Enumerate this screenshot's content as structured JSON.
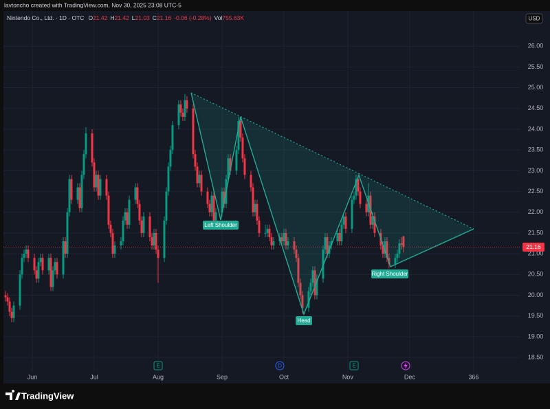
{
  "header": {
    "credit": "lavtoncho created with TradingView.com, Nov 30, 2025 23:08 UTC-5",
    "symbol": "Nintendo Co., Ltd. · 1D · OTC",
    "ohlc": [
      {
        "label": "O",
        "value": "21.42"
      },
      {
        "label": "H",
        "value": "21.42"
      },
      {
        "label": "L",
        "value": "21.03"
      },
      {
        "label": "C",
        "value": "21.16"
      }
    ],
    "change": "-0.06 (-0.28%)",
    "volume_label": "Vol",
    "volume": "755.63K"
  },
  "currency": "USD",
  "brand": "TradingView",
  "events": [
    "E",
    "D",
    "E"
  ],
  "chart_data": {
    "type": "candlestick",
    "annotations": [
      "Left Shoulder",
      "Head",
      "Right Shoulder"
    ],
    "up_color": "#089981",
    "down_color": "#f23645",
    "grid": true,
    "last_price": {
      "value": 21.16,
      "label": "21.16"
    },
    "xlim": [
      138,
      388.7
    ],
    "xticks": [
      {
        "value": 152,
        "label": "Jun"
      },
      {
        "value": 182,
        "label": "Jul"
      },
      {
        "value": 213,
        "label": "Aug"
      },
      {
        "value": 244,
        "label": "Sep"
      },
      {
        "value": 274,
        "label": "Oct"
      },
      {
        "value": 305,
        "label": "Nov"
      },
      {
        "value": 335,
        "label": "Dec"
      },
      366
    ],
    "ylim": [
      18.17,
      26.75
    ],
    "yticks": [
      {
        "value": 18.5,
        "label": "18.50"
      },
      {
        "value": 19,
        "label": "19.00"
      },
      {
        "value": 19.5,
        "label": "19.50"
      },
      {
        "value": 20,
        "label": "20.00"
      },
      {
        "value": 20.5,
        "label": "20.50"
      },
      {
        "value": 21,
        "label": "21.00"
      },
      {
        "value": 21.5,
        "label": "21.50"
      },
      {
        "value": 22,
        "label": "22.00"
      },
      {
        "value": 22.5,
        "label": "22.50"
      },
      {
        "value": 23,
        "label": "23.00"
      },
      {
        "value": 23.5,
        "label": "23.50"
      },
      {
        "value": 24,
        "label": "24.00"
      },
      {
        "value": 24.5,
        "label": "24.50"
      },
      {
        "value": 25,
        "label": "25.00"
      },
      {
        "value": 25.5,
        "label": "25.50"
      },
      {
        "value": 26,
        "label": "26.00"
      }
    ],
    "x": [
      139,
      140,
      141,
      142,
      143,
      146,
      147,
      148,
      149,
      150,
      153,
      154,
      155,
      156,
      157,
      160,
      161,
      162,
      163,
      164,
      167,
      168,
      169,
      170,
      171,
      174,
      175,
      176,
      177,
      178,
      181,
      182,
      183,
      184,
      185,
      188,
      189,
      190,
      191,
      192,
      195,
      196,
      197,
      198,
      199,
      202,
      203,
      204,
      205,
      206,
      209,
      210,
      211,
      212,
      213,
      216,
      217,
      218,
      219,
      220,
      223,
      224,
      225,
      226,
      227,
      230,
      231,
      232,
      233,
      234,
      237,
      238,
      239,
      240,
      241,
      244,
      245,
      246,
      247,
      248,
      251,
      252,
      253,
      254,
      255,
      258,
      259,
      260,
      261,
      262,
      265,
      266,
      267,
      268,
      269,
      272,
      273,
      274,
      275,
      276,
      279,
      280,
      281,
      282,
      283,
      286,
      287,
      288,
      289,
      290,
      293,
      294,
      295,
      296,
      297,
      300,
      301,
      302,
      303,
      304,
      307,
      308,
      309,
      310,
      311,
      314,
      315,
      316,
      317,
      318,
      321,
      322,
      323,
      324,
      325,
      328,
      329,
      330,
      331,
      332
    ],
    "open": [
      20.0,
      19.95,
      19.85,
      19.6,
      19.45,
      19.75,
      20.5,
      20.9,
      21.0,
      21.1,
      20.9,
      20.6,
      20.4,
      20.8,
      20.9,
      20.6,
      20.9,
      20.2,
      20.6,
      20.8,
      20.5,
      21.3,
      21.0,
      22.0,
      22.8,
      22.3,
      22.6,
      22.1,
      22.9,
      23.4,
      23.9,
      23.2,
      22.6,
      22.9,
      22.4,
      22.8,
      22.4,
      21.7,
      21.5,
      21.0,
      21.2,
      21.3,
      21.8,
      22.0,
      21.7,
      22.3,
      22.6,
      22.2,
      21.8,
      21.5,
      21.9,
      21.4,
      21.2,
      21.5,
      21.1,
      20.9,
      21.8,
      22.5,
      23.1,
      23.5,
      24.1,
      24.6,
      24.4,
      24.3,
      24.7,
      24.5,
      23.4,
      23.1,
      22.7,
      22.9,
      22.5,
      22.2,
      22.0,
      22.4,
      21.8,
      22.0,
      22.5,
      22.2,
      22.8,
      23.3,
      23.0,
      23.5,
      24.2,
      23.8,
      23.3,
      22.9,
      22.6,
      22.0,
      22.2,
      21.8,
      21.5,
      21.5,
      21.6,
      21.4,
      21.2,
      21.3,
      21.4,
      21.3,
      21.5,
      21.2,
      21.3,
      21.1,
      20.9,
      20.3,
      20.0,
      19.7,
      20.1,
      20.3,
      20.6,
      20.0,
      20.4,
      21.1,
      21.4,
      21.0,
      21.2,
      21.3,
      21.5,
      21.3,
      21.7,
      21.9,
      21.6,
      22.3,
      22.4,
      22.8,
      22.5,
      22.2,
      22.0,
      22.4,
      21.7,
      21.9,
      21.5,
      21.2,
      21.0,
      21.3,
      20.9,
      20.75,
      20.9,
      21.0,
      21.25,
      21.42
    ],
    "high": [
      20.1,
      20.05,
      19.95,
      19.7,
      19.85,
      20.6,
      21.0,
      21.1,
      21.2,
      21.2,
      21.0,
      20.7,
      20.9,
      21.0,
      21.0,
      21.0,
      21.0,
      20.7,
      20.9,
      20.9,
      21.4,
      21.4,
      22.1,
      22.9,
      22.9,
      22.7,
      22.7,
      23.0,
      23.5,
      24.05,
      24.0,
      23.3,
      23.0,
      23.0,
      22.9,
      22.9,
      22.5,
      21.8,
      21.6,
      21.3,
      21.4,
      21.9,
      22.1,
      22.1,
      22.4,
      22.7,
      22.7,
      22.3,
      21.9,
      22.0,
      22.0,
      21.5,
      21.6,
      21.6,
      21.2,
      21.9,
      22.6,
      23.2,
      23.6,
      24.2,
      24.7,
      24.7,
      24.5,
      24.85,
      24.8,
      24.6,
      23.5,
      23.2,
      23.0,
      23.0,
      22.6,
      22.3,
      22.5,
      22.5,
      22.1,
      22.6,
      22.6,
      22.9,
      23.4,
      23.4,
      23.6,
      24.3,
      24.3,
      23.9,
      23.4,
      23.0,
      22.7,
      22.3,
      22.3,
      21.9,
      21.7,
      21.7,
      21.7,
      21.5,
      21.4,
      21.5,
      21.5,
      21.6,
      21.6,
      21.4,
      21.4,
      21.2,
      21.0,
      20.4,
      20.1,
      20.2,
      20.4,
      20.7,
      20.7,
      20.5,
      21.2,
      21.5,
      21.5,
      21.3,
      21.4,
      21.6,
      21.6,
      21.8,
      22.0,
      22.0,
      22.4,
      22.5,
      22.9,
      22.9,
      22.6,
      22.3,
      22.7,
      22.5,
      22.0,
      22.0,
      21.6,
      21.3,
      21.4,
      21.4,
      21.0,
      21.0,
      21.1,
      21.35,
      21.4,
      21.42
    ],
    "low": [
      19.85,
      19.75,
      19.5,
      19.35,
      19.35,
      19.65,
      20.4,
      20.8,
      20.9,
      20.8,
      20.5,
      20.3,
      20.3,
      20.7,
      20.5,
      20.5,
      20.1,
      20.1,
      20.5,
      20.4,
      20.4,
      20.9,
      20.9,
      21.9,
      22.2,
      22.2,
      22.0,
      22.0,
      22.8,
      23.3,
      23.1,
      22.5,
      22.5,
      22.3,
      22.3,
      22.3,
      21.6,
      21.4,
      20.9,
      20.9,
      21.1,
      21.2,
      21.7,
      21.6,
      21.6,
      22.2,
      22.1,
      21.7,
      21.4,
      21.4,
      21.3,
      21.1,
      21.1,
      21.0,
      20.3,
      20.8,
      21.7,
      22.4,
      23.0,
      23.4,
      24.0,
      24.3,
      24.2,
      24.2,
      24.4,
      23.3,
      23.0,
      22.6,
      22.6,
      22.4,
      22.1,
      21.9,
      21.9,
      21.7,
      21.7,
      21.9,
      22.1,
      22.1,
      22.7,
      22.9,
      22.9,
      23.4,
      23.7,
      23.2,
      22.8,
      22.5,
      21.9,
      21.9,
      21.7,
      21.4,
      21.4,
      21.4,
      21.3,
      21.1,
      21.1,
      21.2,
      21.2,
      21.2,
      21.1,
      21.1,
      21.0,
      20.8,
      20.2,
      19.9,
      19.55,
      19.6,
      20.0,
      20.2,
      19.9,
      19.9,
      20.3,
      21.0,
      20.9,
      20.9,
      21.1,
      21.2,
      21.2,
      21.2,
      21.6,
      21.5,
      21.5,
      22.2,
      22.3,
      22.4,
      22.1,
      21.9,
      21.9,
      21.6,
      21.6,
      21.4,
      21.1,
      20.9,
      20.9,
      20.8,
      20.65,
      20.65,
      20.8,
      20.9,
      21.1,
      21.03
    ],
    "close": [
      19.95,
      19.85,
      19.6,
      19.45,
      19.75,
      20.5,
      20.9,
      21.0,
      21.1,
      20.9,
      20.6,
      20.4,
      20.8,
      20.9,
      20.6,
      20.9,
      20.2,
      20.6,
      20.8,
      20.5,
      21.3,
      21.0,
      22.0,
      22.8,
      22.3,
      22.6,
      22.1,
      22.9,
      23.4,
      23.9,
      23.2,
      22.6,
      22.9,
      22.4,
      22.8,
      22.4,
      21.7,
      21.5,
      21.0,
      21.2,
      21.3,
      21.8,
      22.0,
      21.7,
      22.3,
      22.6,
      22.2,
      21.8,
      21.5,
      21.9,
      21.4,
      21.2,
      21.5,
      21.1,
      20.9,
      21.8,
      22.5,
      23.1,
      23.5,
      24.1,
      24.6,
      24.4,
      24.3,
      24.7,
      24.5,
      23.4,
      23.1,
      22.7,
      22.9,
      22.5,
      22.2,
      22.0,
      22.4,
      21.8,
      22.0,
      22.5,
      22.2,
      22.8,
      23.3,
      23.0,
      23.5,
      24.2,
      23.8,
      23.3,
      22.9,
      22.6,
      22.0,
      22.2,
      21.8,
      21.5,
      21.5,
      21.6,
      21.4,
      21.2,
      21.3,
      21.4,
      21.3,
      21.5,
      21.2,
      21.3,
      21.1,
      20.9,
      20.3,
      20.0,
      19.7,
      20.1,
      20.3,
      20.6,
      20.0,
      20.4,
      21.1,
      21.4,
      21.0,
      21.2,
      21.3,
      21.5,
      21.3,
      21.7,
      21.9,
      21.6,
      22.3,
      22.4,
      22.8,
      22.5,
      22.2,
      22.0,
      22.4,
      21.7,
      21.9,
      21.5,
      21.2,
      21.0,
      21.3,
      20.9,
      20.75,
      20.9,
      21.0,
      21.25,
      21.22,
      21.16
    ]
  }
}
